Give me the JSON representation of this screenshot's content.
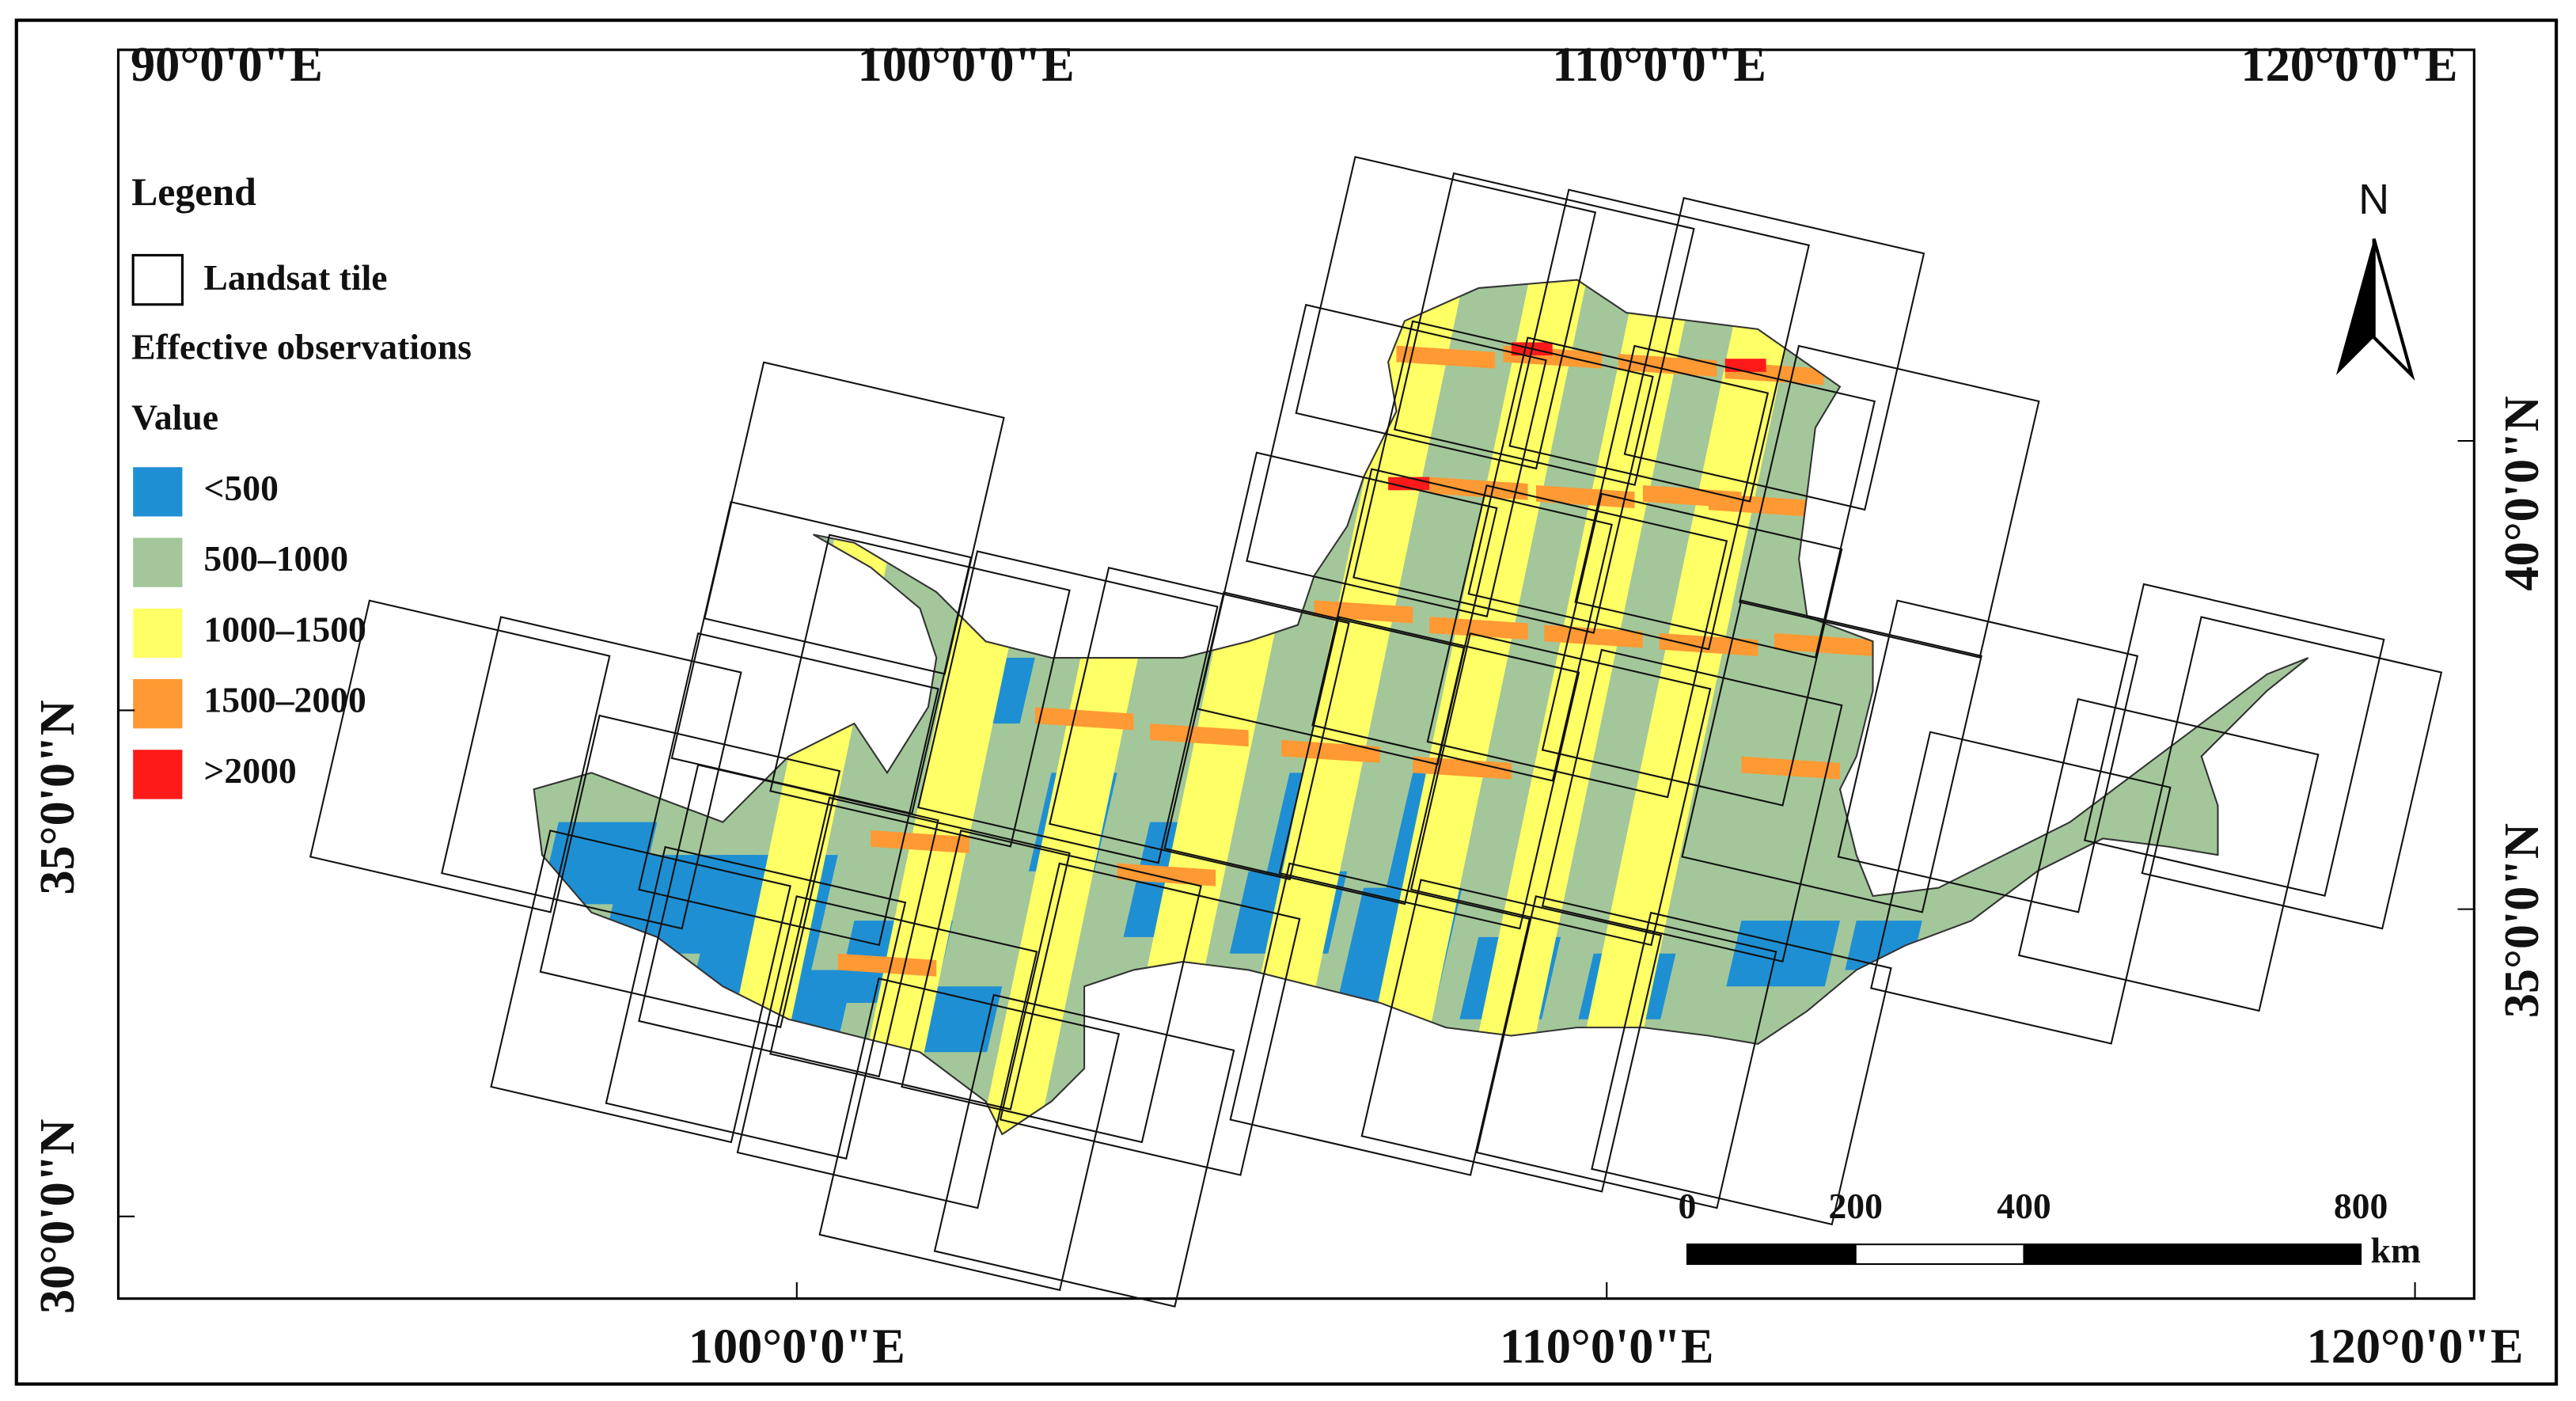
{
  "legend": {
    "title": "Legend",
    "tile": "Landsat tile",
    "section": "Effective observations",
    "value_title": "Value",
    "items": [
      {
        "label": "<500",
        "color": "#1f8fd4"
      },
      {
        "label": "500–1000",
        "color": "#a3c79a"
      },
      {
        "label": "1000–1500",
        "color": "#ffff66"
      },
      {
        "label": "1500–2000",
        "color": "#ff9933"
      },
      {
        "label": ">2000",
        "color": "#ff1a1a"
      }
    ]
  },
  "graticule": {
    "top": [
      "90°0'0\"E",
      "100°0'0\"E",
      "110°0'0\"E",
      "120°0'0\"E"
    ],
    "bottom": [
      "100°0'0\"E",
      "110°0'0\"E",
      "120°0'0\"E"
    ],
    "left": [
      "35°0'0\"N",
      "30°0'0\"N"
    ],
    "right": [
      "40°0'0\"N",
      "35°0'0\"N"
    ]
  },
  "north_arrow": "N",
  "scale_bar": {
    "ticks": [
      0,
      200,
      400,
      800
    ],
    "unit": "km"
  }
}
